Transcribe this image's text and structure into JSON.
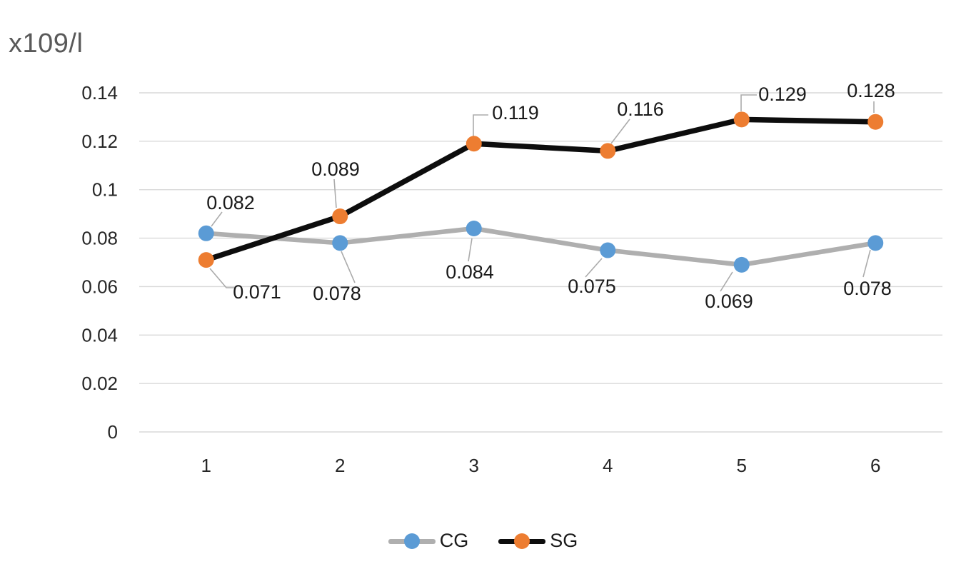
{
  "axis_title": "x109/l",
  "legend": {
    "items": [
      {
        "label": "CG",
        "marker_color": "#5B9BD5",
        "line_color": "#AFAFAF"
      },
      {
        "label": "SG",
        "marker_color": "#ED7D31",
        "line_color": "#0D0D0D"
      }
    ]
  },
  "chart_data": {
    "type": "line",
    "categories": [
      "1",
      "2",
      "3",
      "4",
      "5",
      "6"
    ],
    "series": [
      {
        "name": "CG",
        "values": [
          0.082,
          0.078,
          0.084,
          0.075,
          0.069,
          0.078
        ],
        "line_color": "#AFAFAF",
        "marker_color": "#5B9BD5"
      },
      {
        "name": "SG",
        "values": [
          0.071,
          0.089,
          0.119,
          0.116,
          0.129,
          0.128
        ],
        "line_color": "#0D0D0D",
        "marker_color": "#ED7D31"
      }
    ],
    "title": "",
    "xlabel": "",
    "ylabel": "x109/l",
    "ylim": [
      0,
      0.14
    ],
    "yticks": [
      "0.14",
      "0.12",
      "0.1",
      "0.08",
      "0.06",
      "0.04",
      "0.02",
      "0"
    ],
    "grid": true,
    "legend_position": "bottom",
    "data_labels": true,
    "colors": {
      "gridline": "#D9D9D9",
      "tick_text": "#262626",
      "axis_title_text": "#595959",
      "leader_line": "#ABABAB",
      "label_text": "#1a1a1a"
    }
  }
}
